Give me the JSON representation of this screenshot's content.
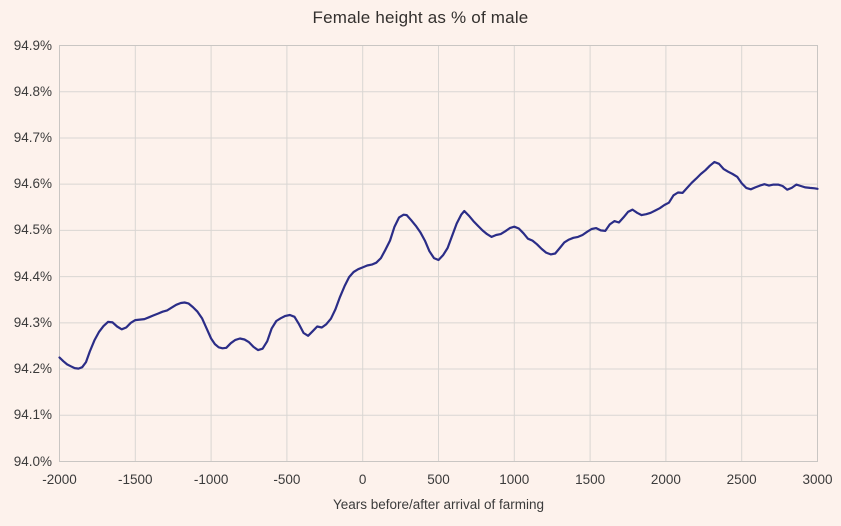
{
  "chart_data": {
    "type": "line",
    "title": "Female height as % of male",
    "xlabel": "Years before/after arrival of farming",
    "ylabel": "",
    "xlim": [
      -2000,
      3000
    ],
    "ylim": [
      94.0,
      94.9
    ],
    "grid": true,
    "legend": "none",
    "background_color": "#fdf2ec",
    "grid_color": "#d9d6d3",
    "border_color": "#c9c6c3",
    "line_color": "#2b2d87",
    "text_color": "#3b3b3b",
    "x_ticks": [
      {
        "v": -2000,
        "label": "-2000"
      },
      {
        "v": -1500,
        "label": "-1500"
      },
      {
        "v": -1000,
        "label": "-1000"
      },
      {
        "v": -500,
        "label": "-500"
      },
      {
        "v": 0,
        "label": "0"
      },
      {
        "v": 500,
        "label": "500"
      },
      {
        "v": 1000,
        "label": "1000"
      },
      {
        "v": 1500,
        "label": "1500"
      },
      {
        "v": 2000,
        "label": "2000"
      },
      {
        "v": 2500,
        "label": "2500"
      },
      {
        "v": 3000,
        "label": "3000"
      }
    ],
    "y_ticks": [
      {
        "v": 94.0,
        "label": "94.0%"
      },
      {
        "v": 94.1,
        "label": "94.1%"
      },
      {
        "v": 94.2,
        "label": "94.2%"
      },
      {
        "v": 94.3,
        "label": "94.3%"
      },
      {
        "v": 94.4,
        "label": "94.4%"
      },
      {
        "v": 94.5,
        "label": "94.5%"
      },
      {
        "v": 94.6,
        "label": "94.6%"
      },
      {
        "v": 94.7,
        "label": "94.7%"
      },
      {
        "v": 94.8,
        "label": "94.8%"
      },
      {
        "v": 94.9,
        "label": "94.9%"
      }
    ],
    "series": [
      {
        "name": "Female height as % of male",
        "points": [
          [
            -2000,
            94.225
          ],
          [
            -1975,
            94.217
          ],
          [
            -1950,
            94.21
          ],
          [
            -1925,
            94.206
          ],
          [
            -1900,
            94.202
          ],
          [
            -1875,
            94.201
          ],
          [
            -1850,
            94.204
          ],
          [
            -1825,
            94.215
          ],
          [
            -1800,
            94.238
          ],
          [
            -1770,
            94.262
          ],
          [
            -1740,
            94.28
          ],
          [
            -1710,
            94.293
          ],
          [
            -1680,
            94.302
          ],
          [
            -1650,
            94.301
          ],
          [
            -1620,
            94.292
          ],
          [
            -1590,
            94.286
          ],
          [
            -1560,
            94.29
          ],
          [
            -1530,
            94.3
          ],
          [
            -1500,
            94.306
          ],
          [
            -1470,
            94.307
          ],
          [
            -1440,
            94.308
          ],
          [
            -1410,
            94.312
          ],
          [
            -1380,
            94.316
          ],
          [
            -1350,
            94.32
          ],
          [
            -1320,
            94.324
          ],
          [
            -1290,
            94.327
          ],
          [
            -1260,
            94.333
          ],
          [
            -1230,
            94.339
          ],
          [
            -1200,
            94.343
          ],
          [
            -1175,
            94.344
          ],
          [
            -1150,
            94.342
          ],
          [
            -1120,
            94.334
          ],
          [
            -1090,
            94.324
          ],
          [
            -1060,
            94.31
          ],
          [
            -1030,
            94.288
          ],
          [
            -1000,
            94.266
          ],
          [
            -975,
            94.254
          ],
          [
            -950,
            94.247
          ],
          [
            -925,
            94.245
          ],
          [
            -900,
            94.246
          ],
          [
            -870,
            94.256
          ],
          [
            -840,
            94.263
          ],
          [
            -810,
            94.266
          ],
          [
            -780,
            94.264
          ],
          [
            -750,
            94.258
          ],
          [
            -720,
            94.248
          ],
          [
            -690,
            94.241
          ],
          [
            -660,
            94.244
          ],
          [
            -630,
            94.26
          ],
          [
            -600,
            94.288
          ],
          [
            -570,
            94.304
          ],
          [
            -540,
            94.31
          ],
          [
            -510,
            94.315
          ],
          [
            -480,
            94.317
          ],
          [
            -450,
            94.313
          ],
          [
            -420,
            94.297
          ],
          [
            -390,
            94.278
          ],
          [
            -360,
            94.272
          ],
          [
            -330,
            94.282
          ],
          [
            -300,
            94.292
          ],
          [
            -270,
            94.29
          ],
          [
            -240,
            94.297
          ],
          [
            -210,
            94.309
          ],
          [
            -180,
            94.329
          ],
          [
            -150,
            94.356
          ],
          [
            -120,
            94.379
          ],
          [
            -90,
            94.399
          ],
          [
            -60,
            94.41
          ],
          [
            -30,
            94.416
          ],
          [
            0,
            94.42
          ],
          [
            30,
            94.424
          ],
          [
            60,
            94.426
          ],
          [
            90,
            94.43
          ],
          [
            120,
            94.44
          ],
          [
            150,
            94.458
          ],
          [
            180,
            94.478
          ],
          [
            210,
            94.508
          ],
          [
            240,
            94.528
          ],
          [
            270,
            94.534
          ],
          [
            290,
            94.533
          ],
          [
            320,
            94.522
          ],
          [
            350,
            94.51
          ],
          [
            380,
            94.496
          ],
          [
            410,
            94.478
          ],
          [
            440,
            94.455
          ],
          [
            470,
            94.44
          ],
          [
            500,
            94.436
          ],
          [
            530,
            94.446
          ],
          [
            560,
            94.462
          ],
          [
            590,
            94.488
          ],
          [
            620,
            94.515
          ],
          [
            650,
            94.534
          ],
          [
            670,
            94.542
          ],
          [
            700,
            94.532
          ],
          [
            730,
            94.52
          ],
          [
            760,
            94.51
          ],
          [
            790,
            94.5
          ],
          [
            820,
            94.492
          ],
          [
            850,
            94.486
          ],
          [
            880,
            94.49
          ],
          [
            910,
            94.492
          ],
          [
            940,
            94.498
          ],
          [
            970,
            94.505
          ],
          [
            1000,
            94.508
          ],
          [
            1030,
            94.504
          ],
          [
            1060,
            94.494
          ],
          [
            1090,
            94.482
          ],
          [
            1120,
            94.478
          ],
          [
            1150,
            94.47
          ],
          [
            1180,
            94.46
          ],
          [
            1210,
            94.452
          ],
          [
            1240,
            94.448
          ],
          [
            1270,
            94.45
          ],
          [
            1300,
            94.462
          ],
          [
            1330,
            94.474
          ],
          [
            1360,
            94.48
          ],
          [
            1390,
            94.484
          ],
          [
            1420,
            94.486
          ],
          [
            1450,
            94.49
          ],
          [
            1480,
            94.497
          ],
          [
            1510,
            94.503
          ],
          [
            1540,
            94.505
          ],
          [
            1570,
            94.5
          ],
          [
            1600,
            94.499
          ],
          [
            1630,
            94.513
          ],
          [
            1660,
            94.52
          ],
          [
            1690,
            94.517
          ],
          [
            1720,
            94.528
          ],
          [
            1750,
            94.54
          ],
          [
            1780,
            94.545
          ],
          [
            1810,
            94.538
          ],
          [
            1840,
            94.533
          ],
          [
            1870,
            94.535
          ],
          [
            1900,
            94.538
          ],
          [
            1930,
            94.543
          ],
          [
            1960,
            94.548
          ],
          [
            1990,
            94.555
          ],
          [
            2020,
            94.56
          ],
          [
            2050,
            94.576
          ],
          [
            2080,
            94.582
          ],
          [
            2110,
            94.581
          ],
          [
            2140,
            94.592
          ],
          [
            2170,
            94.603
          ],
          [
            2200,
            94.612
          ],
          [
            2230,
            94.622
          ],
          [
            2260,
            94.63
          ],
          [
            2290,
            94.64
          ],
          [
            2320,
            94.648
          ],
          [
            2350,
            94.644
          ],
          [
            2380,
            94.633
          ],
          [
            2410,
            94.627
          ],
          [
            2440,
            94.622
          ],
          [
            2470,
            94.616
          ],
          [
            2500,
            94.602
          ],
          [
            2530,
            94.592
          ],
          [
            2560,
            94.589
          ],
          [
            2590,
            94.593
          ],
          [
            2620,
            94.597
          ],
          [
            2650,
            94.6
          ],
          [
            2680,
            94.597
          ],
          [
            2710,
            94.599
          ],
          [
            2740,
            94.599
          ],
          [
            2770,
            94.596
          ],
          [
            2800,
            94.588
          ],
          [
            2830,
            94.592
          ],
          [
            2860,
            94.599
          ],
          [
            2890,
            94.596
          ],
          [
            2920,
            94.593
          ],
          [
            2950,
            94.592
          ],
          [
            2980,
            94.591
          ],
          [
            3000,
            94.59
          ]
        ]
      }
    ]
  }
}
